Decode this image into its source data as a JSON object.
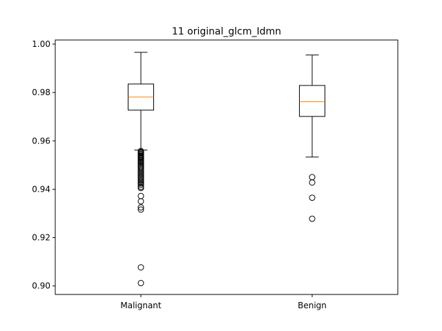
{
  "chart_data": {
    "type": "box",
    "title": "11 original_glcm_Idmn",
    "xlabel": "",
    "ylabel": "",
    "categories": [
      "Malignant",
      "Benign"
    ],
    "ylim": [
      0.8965,
      1.0017
    ],
    "yticks": [
      "0.90",
      "0.92",
      "0.94",
      "0.96",
      "0.98",
      "1.00"
    ],
    "ytick_values": [
      0.9,
      0.92,
      0.94,
      0.96,
      0.98,
      1.0
    ],
    "grid": false,
    "median_color": "#ff7f0e",
    "box_color": "#000000",
    "boxes": [
      {
        "label": "Malignant",
        "whisker_low": 0.9562,
        "q1": 0.9727,
        "median": 0.9781,
        "q3": 0.9835,
        "whisker_high": 0.9966,
        "outliers": [
          0.9558,
          0.9554,
          0.955,
          0.9546,
          0.9542,
          0.9538,
          0.9534,
          0.953,
          0.9525,
          0.952,
          0.9515,
          0.951,
          0.9505,
          0.95,
          0.9495,
          0.949,
          0.9484,
          0.9478,
          0.9472,
          0.9466,
          0.946,
          0.9454,
          0.9448,
          0.9442,
          0.9436,
          0.943,
          0.9424,
          0.9418,
          0.941,
          0.9405,
          0.9372,
          0.935,
          0.9325,
          0.9316,
          0.9077,
          0.9012
        ]
      },
      {
        "label": "Benign",
        "whisker_low": 0.9533,
        "q1": 0.9701,
        "median": 0.9762,
        "q3": 0.9829,
        "whisker_high": 0.9955,
        "outliers": [
          0.945,
          0.9428,
          0.9365,
          0.9278
        ]
      }
    ]
  }
}
